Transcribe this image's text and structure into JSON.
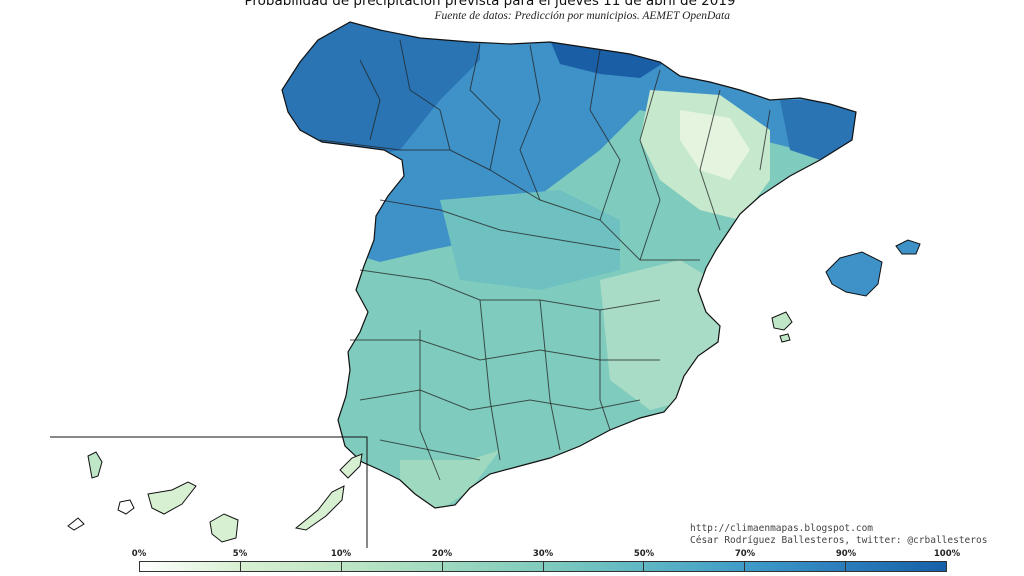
{
  "title": "Probabilidad de precipitación prevista para el jueves 11 de abril de 2019",
  "subtitle": "Fuente de datos: Predicción por municipios. AEMET OpenData",
  "credits": {
    "url": "http://climaenmapas.blogspot.com",
    "author": "César Rodríguez Ballesteros, twitter: @crballesteros"
  },
  "legend": {
    "ticks": [
      "0%",
      "5%",
      "10%",
      "20%",
      "30%",
      "50%",
      "70%",
      "90%",
      "100%"
    ],
    "colors": [
      "#ffffff",
      "#d8f0d2",
      "#bfe6c6",
      "#9fd9c0",
      "#7fcbbd",
      "#5fb7c4",
      "#3f9cc8",
      "#2a7cbb",
      "#1660a8"
    ]
  },
  "palette": {
    "low": "#d8f0d2",
    "mid_low": "#a8dcc6",
    "mid": "#7fcbbd",
    "mid_high": "#5fb0c6",
    "high": "#3f92c8",
    "very_high": "#2a74b4",
    "max": "#1a5ea5"
  }
}
